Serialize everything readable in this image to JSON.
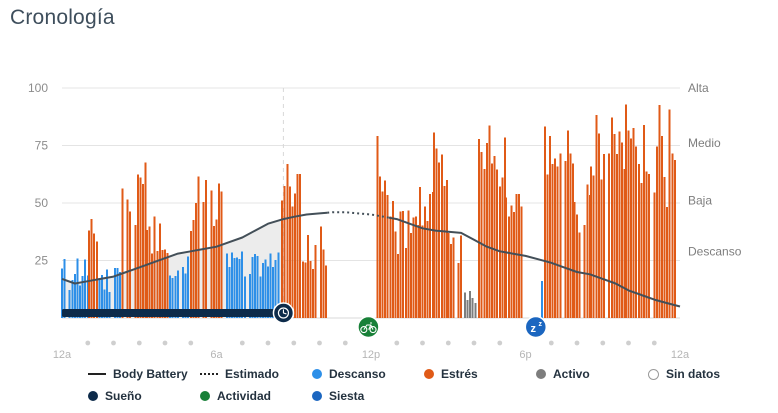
{
  "title": "Cronología",
  "legend": {
    "rows": [
      [
        {
          "label": "Body Battery",
          "swatch": "line",
          "color": "#222222"
        },
        {
          "label": "Estimado",
          "swatch": "dotted",
          "color": "#222222"
        },
        {
          "label": "Descanso",
          "swatch": "dot",
          "color": "#2d8fe8"
        },
        {
          "label": "Estrés",
          "swatch": "dot",
          "color": "#e05a17"
        },
        {
          "label": "Activo",
          "swatch": "dot",
          "color": "#7d7d7d"
        },
        {
          "label": "Sin datos",
          "swatch": "dot-outline",
          "color": "#9a9a9a"
        }
      ],
      [
        {
          "label": "Sueño",
          "swatch": "dot",
          "color": "#0d2b4a"
        },
        {
          "label": "Actividad",
          "swatch": "dot",
          "color": "#188038"
        },
        {
          "label": "Siesta",
          "swatch": "dot",
          "color": "#1b66c0"
        }
      ]
    ]
  },
  "colors": {
    "rest": "#2d8fe8",
    "stress": "#e05a17",
    "active": "#7d7d7d",
    "sleep": "#0d2b4a",
    "activity": "#188038",
    "nap": "#1b66c0",
    "line": "#434f58",
    "grid": "#e4e4e4",
    "baseline": "#d9d9d9",
    "fill": "#ececec",
    "divider": "#d8d8d8",
    "axis_text": "#8c8c8c",
    "hour_text": "#b5b5b5",
    "zone_text": "#7e7e7e",
    "dot_axis": "#cfcfcf"
  },
  "chart_data": {
    "type": "bar",
    "description": "24-hour Garmin Body Battery / stress timeline. Bars are ~6-minute samples (blue=rest, orange=stress, gray=active); dark line is Body Battery level 0-100, dotted where estimated; gray area = charging during sleep.",
    "x_unit": "hours (12a to 12a)",
    "x_range": [
      0,
      24
    ],
    "y_range": [
      0,
      100
    ],
    "y_ticks": [
      100,
      75,
      50,
      25
    ],
    "x_tick_labels": [
      {
        "hour": 0,
        "label": "12a"
      },
      {
        "hour": 6,
        "label": "6a"
      },
      {
        "hour": 12,
        "label": "12p"
      },
      {
        "hour": 18,
        "label": "6p"
      },
      {
        "hour": 24,
        "label": "12a"
      }
    ],
    "right_zone_labels": [
      {
        "label": "Alta",
        "at": 100
      },
      {
        "label": "Medio",
        "at": 76
      },
      {
        "label": "Baja",
        "at": 51
      },
      {
        "label": "Descanso",
        "at": 29
      }
    ],
    "body_battery_line": {
      "points": [
        [
          0,
          17
        ],
        [
          0.5,
          15
        ],
        [
          1,
          16
        ],
        [
          1.5,
          17
        ],
        [
          2,
          18
        ],
        [
          2.5,
          20
        ],
        [
          3,
          22
        ],
        [
          3.5,
          24
        ],
        [
          4,
          26
        ],
        [
          4.5,
          28
        ],
        [
          5,
          29
        ],
        [
          5.5,
          30
        ],
        [
          6,
          31
        ],
        [
          6.5,
          33
        ],
        [
          7,
          35
        ],
        [
          7.5,
          38
        ],
        [
          8,
          41
        ],
        [
          8.6,
          43
        ],
        [
          9,
          44
        ],
        [
          9.5,
          45
        ],
        [
          10,
          45.5
        ],
        [
          10.5,
          46
        ],
        [
          11,
          46
        ],
        [
          11.5,
          45.5
        ],
        [
          12,
          45
        ],
        [
          12.5,
          44
        ],
        [
          13,
          43
        ],
        [
          13.5,
          41
        ],
        [
          14,
          39
        ],
        [
          14.5,
          38
        ],
        [
          15,
          37.5
        ],
        [
          15.5,
          37
        ],
        [
          16,
          34
        ],
        [
          16.5,
          31
        ],
        [
          17,
          29
        ],
        [
          17.5,
          28
        ],
        [
          18,
          27
        ],
        [
          18.5,
          25.5
        ],
        [
          19,
          24
        ],
        [
          19.5,
          22
        ],
        [
          20,
          20
        ],
        [
          20.5,
          19
        ],
        [
          21,
          17
        ],
        [
          21.5,
          15
        ],
        [
          22,
          12
        ],
        [
          22.5,
          10
        ],
        [
          23,
          8
        ],
        [
          23.5,
          6.5
        ],
        [
          24,
          5
        ]
      ],
      "estimated_range": [
        10.3,
        12.7
      ]
    },
    "sleep_fill_end_hour": 8.6,
    "bar_sample_step_hours": 0.1,
    "bar_segments": [
      {
        "start": 0.0,
        "end": 1.05,
        "type": "rest",
        "min": 8,
        "max": 26
      },
      {
        "start": 1.05,
        "end": 1.45,
        "type": "stress",
        "min": 30,
        "max": 46
      },
      {
        "start": 1.45,
        "end": 2.35,
        "type": "rest",
        "min": 8,
        "max": 22
      },
      {
        "start": 2.35,
        "end": 3.3,
        "type": "stress",
        "min": 38,
        "max": 75
      },
      {
        "start": 3.3,
        "end": 4.2,
        "type": "stress",
        "min": 26,
        "max": 45
      },
      {
        "start": 4.2,
        "end": 5.0,
        "type": "rest",
        "min": 14,
        "max": 28
      },
      {
        "start": 5.0,
        "end": 6.3,
        "type": "stress",
        "min": 33,
        "max": 65
      },
      {
        "start": 6.3,
        "end": 8.5,
        "type": "rest",
        "min": 18,
        "max": 30
      },
      {
        "start": 8.55,
        "end": 9.35,
        "type": "stress",
        "min": 42,
        "max": 70
      },
      {
        "start": 9.35,
        "end": 10.3,
        "type": "stress",
        "min": 20,
        "max": 40
      },
      {
        "start": 12.25,
        "end": 12.95,
        "type": "stress",
        "min": 42,
        "max": 80
      },
      {
        "start": 12.95,
        "end": 13.9,
        "type": "stress",
        "min": 26,
        "max": 48
      },
      {
        "start": 13.9,
        "end": 14.45,
        "type": "stress",
        "min": 40,
        "max": 62
      },
      {
        "start": 14.45,
        "end": 15.0,
        "type": "stress",
        "min": 50,
        "max": 85
      },
      {
        "start": 15.0,
        "end": 15.6,
        "type": "stress",
        "min": 20,
        "max": 40
      },
      {
        "start": 15.65,
        "end": 16.15,
        "type": "active",
        "min": 4,
        "max": 12
      },
      {
        "start": 16.2,
        "end": 17.25,
        "type": "stress",
        "min": 45,
        "max": 87
      },
      {
        "start": 17.25,
        "end": 17.9,
        "type": "stress",
        "min": 25,
        "max": 58
      },
      {
        "start": 18.45,
        "end": 18.7,
        "type": "rest",
        "min": 6,
        "max": 16
      },
      {
        "start": 18.75,
        "end": 19.9,
        "type": "stress",
        "min": 50,
        "max": 95
      },
      {
        "start": 19.9,
        "end": 20.55,
        "type": "stress",
        "min": 32,
        "max": 60
      },
      {
        "start": 20.55,
        "end": 21.9,
        "type": "stress",
        "min": 50,
        "max": 92
      },
      {
        "start": 21.9,
        "end": 24.0,
        "type": "stress",
        "min": 45,
        "max": 95
      }
    ],
    "events": {
      "sleep": {
        "start_hour": 0,
        "end_hour": 8.6,
        "icon": "clock"
      },
      "activity": {
        "hour": 11.9,
        "icon": "bicycle"
      },
      "nap": {
        "hour": 18.4,
        "icon": "zzz"
      }
    }
  }
}
